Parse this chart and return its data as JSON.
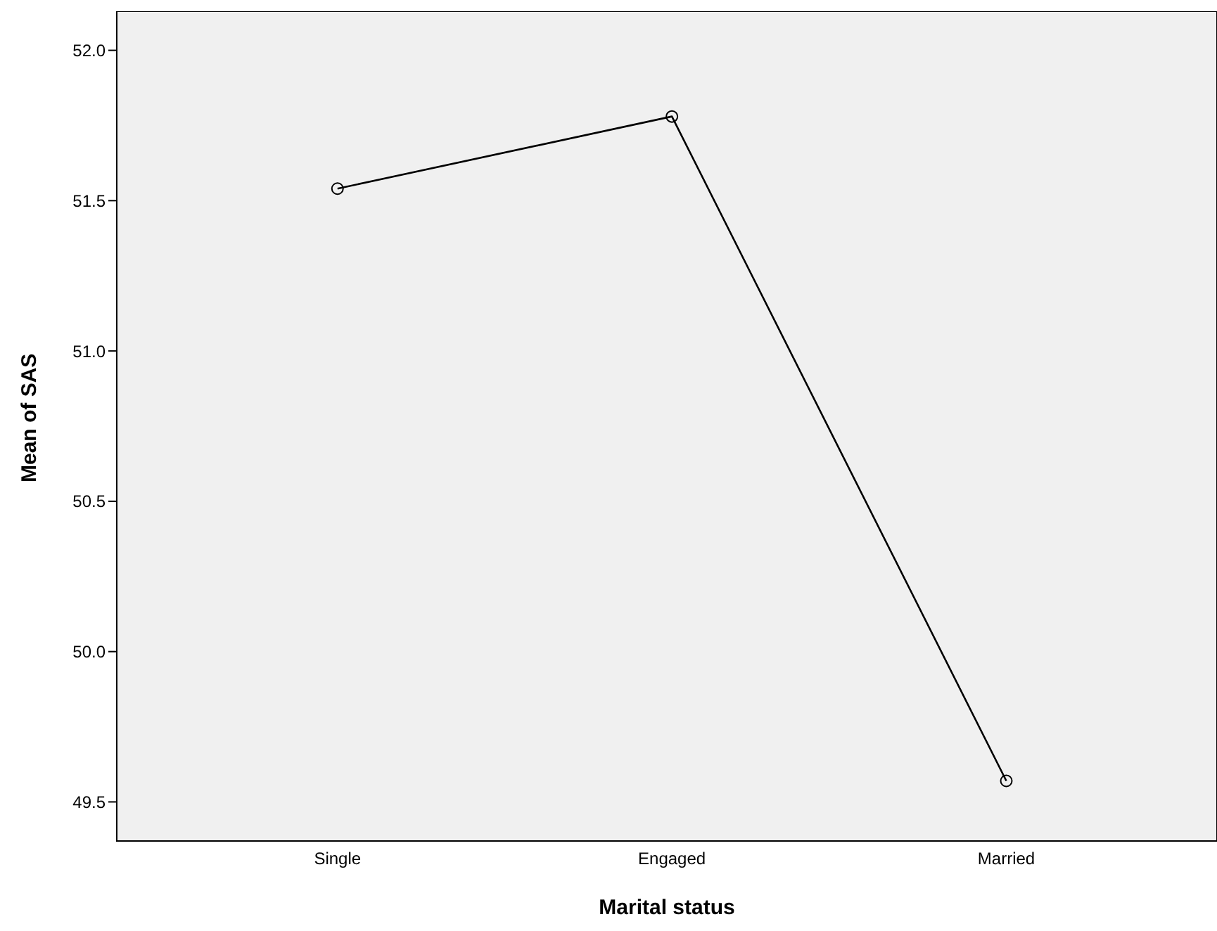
{
  "chart_data": {
    "type": "line",
    "xlabel": "Marital status",
    "ylabel": "Mean of SAS",
    "categories": [
      "Single",
      "Engaged",
      "Married"
    ],
    "series": [
      {
        "color": "#000000",
        "values": [
          51.54,
          51.78,
          49.57
        ]
      }
    ],
    "ylim": [
      49.37,
      52.13
    ],
    "yticks": [
      {
        "value": 49.5,
        "label": "49.5"
      },
      {
        "value": 50,
        "label": "50.0"
      },
      {
        "value": 50.5,
        "label": "50.5"
      },
      {
        "value": 51,
        "label": "51.0"
      },
      {
        "value": 51.5,
        "label": "51.5"
      },
      {
        "value": 52,
        "label": "52.0"
      }
    ],
    "legend": false,
    "marker": "circle",
    "line_style": "solid"
  }
}
